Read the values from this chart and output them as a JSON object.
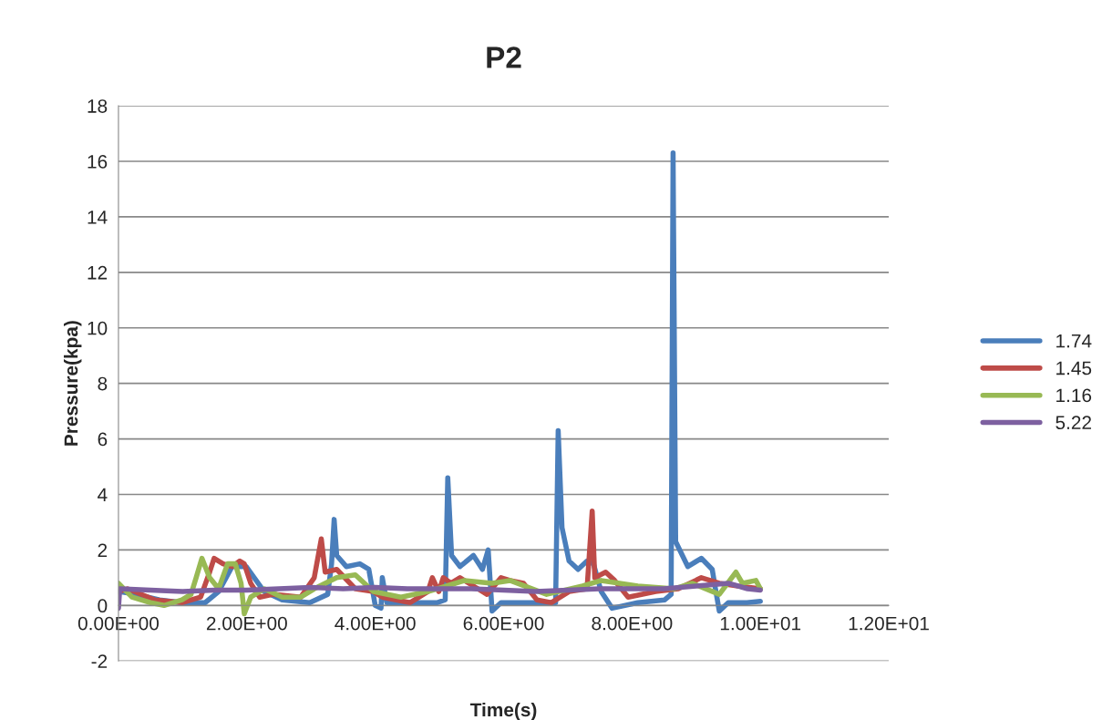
{
  "chart_data": {
    "type": "line",
    "title": "P2",
    "xlabel": "Time(s)",
    "ylabel": "Pressure(kpa)",
    "xlim": [
      0,
      12
    ],
    "xticks": [
      {
        "value": 0,
        "label": "0.00E+00"
      },
      {
        "value": 2,
        "label": "2.00E+00"
      },
      {
        "value": 4,
        "label": "4.00E+00"
      },
      {
        "value": 6,
        "label": "6.00E+00"
      },
      {
        "value": 8,
        "label": "8.00E+00"
      },
      {
        "value": 10,
        "label": "1.00E+01"
      },
      {
        "value": 12,
        "label": "1.20E+01"
      }
    ],
    "ylim": [
      -2,
      18
    ],
    "yticks": [
      -2,
      0,
      2,
      4,
      6,
      8,
      10,
      12,
      14,
      16,
      18
    ],
    "grid": "y",
    "legend": "right",
    "marker": "none",
    "line_style": "solid",
    "series": [
      {
        "name": "1.74",
        "color": "#4a7ebb",
        "x": [
          0,
          0.28,
          0.64,
          0.99,
          1.35,
          1.56,
          1.77,
          1.99,
          2.27,
          2.55,
          2.98,
          3.26,
          3.32,
          3.36,
          3.4,
          3.55,
          3.76,
          3.9,
          4.0,
          4.09,
          4.11,
          4.18,
          4.54,
          4.96,
          5.09,
          5.13,
          5.19,
          5.32,
          5.53,
          5.67,
          5.76,
          5.82,
          5.96,
          6.38,
          6.81,
          6.85,
          6.91,
          7.02,
          7.16,
          7.3,
          7.4,
          7.52,
          7.69,
          8.09,
          8.51,
          8.61,
          8.64,
          8.68,
          8.87,
          9.08,
          9.25,
          9.3,
          9.36,
          9.5,
          9.79,
          10.0
        ],
        "values": [
          0.5,
          0.4,
          0.2,
          0.1,
          0.1,
          0.5,
          1.4,
          1.4,
          0.5,
          0.2,
          0.1,
          0.4,
          1.5,
          3.1,
          1.8,
          1.4,
          1.5,
          1.3,
          0,
          -0.1,
          1.0,
          0.1,
          0.1,
          0.1,
          0.2,
          4.6,
          1.8,
          1.4,
          1.8,
          1.3,
          2.0,
          -0.2,
          0.1,
          0.1,
          0.1,
          6.3,
          2.8,
          1.6,
          1.3,
          1.6,
          1.5,
          0.5,
          -0.1,
          0.1,
          0.2,
          0.4,
          16.3,
          2.3,
          1.4,
          1.7,
          1.3,
          0.6,
          -0.2,
          0.1,
          0.1,
          0.15
        ]
      },
      {
        "name": "1.45",
        "color": "#be4b48",
        "x": [
          0,
          0.14,
          0.57,
          0.99,
          1.28,
          1.42,
          1.49,
          1.63,
          1.77,
          1.89,
          1.96,
          2.06,
          2.2,
          2.41,
          2.84,
          3.05,
          3.16,
          3.22,
          3.4,
          3.69,
          3.97,
          4.11,
          4.54,
          4.82,
          4.89,
          4.99,
          5.06,
          5.18,
          5.32,
          5.53,
          5.74,
          5.96,
          6.1,
          6.31,
          6.52,
          6.74,
          7.02,
          7.3,
          7.38,
          7.42,
          7.59,
          7.73,
          7.94,
          8.37,
          8.72,
          9.08,
          9.36,
          9.65,
          10.0
        ],
        "values": [
          0.5,
          0.6,
          0.2,
          0.1,
          0.3,
          1.2,
          1.7,
          1.5,
          1.4,
          1.6,
          1.5,
          0.8,
          0.3,
          0.4,
          0.3,
          1.0,
          2.4,
          1.2,
          1.3,
          0.6,
          0.5,
          0.3,
          0.1,
          0.5,
          1.0,
          0.5,
          1.0,
          0.8,
          1.0,
          0.7,
          0.4,
          1.0,
          0.9,
          0.8,
          0.2,
          0.1,
          0.5,
          0.6,
          3.4,
          1.0,
          1.2,
          0.9,
          0.3,
          0.5,
          0.6,
          1.0,
          0.8,
          0.7,
          0.6
        ]
      },
      {
        "name": "1.16",
        "color": "#98b954",
        "x": [
          0,
          0.21,
          0.5,
          0.71,
          0.99,
          1.13,
          1.21,
          1.3,
          1.42,
          1.56,
          1.7,
          1.82,
          1.91,
          1.96,
          2.06,
          2.27,
          2.55,
          2.84,
          3.05,
          3.4,
          3.69,
          3.97,
          4.4,
          4.82,
          5.11,
          5.39,
          5.82,
          6.1,
          6.67,
          7.23,
          7.52,
          8.09,
          8.65,
          8.94,
          9.36,
          9.62,
          9.72,
          9.93,
          10.0
        ],
        "values": [
          0.8,
          0.3,
          0.1,
          0,
          0.2,
          0.4,
          1.0,
          1.7,
          1.0,
          0.6,
          1.5,
          1.5,
          0.8,
          -0.3,
          0.3,
          0.6,
          0.3,
          0.3,
          0.6,
          1.0,
          1.1,
          0.5,
          0.3,
          0.5,
          0.7,
          0.9,
          0.8,
          0.9,
          0.4,
          0.7,
          0.9,
          0.7,
          0.6,
          0.8,
          0.4,
          1.2,
          0.8,
          0.9,
          0.6
        ]
      },
      {
        "name": "5.22",
        "color": "#7d60a0",
        "x": [
          0,
          0.02,
          0.5,
          1.0,
          1.5,
          2.0,
          2.5,
          3.0,
          3.5,
          4.0,
          4.5,
          5.0,
          5.5,
          6.0,
          6.5,
          7.0,
          7.5,
          8.0,
          8.5,
          9.0,
          9.5,
          9.8,
          10.0
        ],
        "values": [
          -0.1,
          0.6,
          0.55,
          0.5,
          0.55,
          0.55,
          0.6,
          0.65,
          0.6,
          0.65,
          0.6,
          0.6,
          0.6,
          0.55,
          0.5,
          0.55,
          0.6,
          0.6,
          0.6,
          0.7,
          0.8,
          0.6,
          0.55
        ]
      }
    ]
  }
}
